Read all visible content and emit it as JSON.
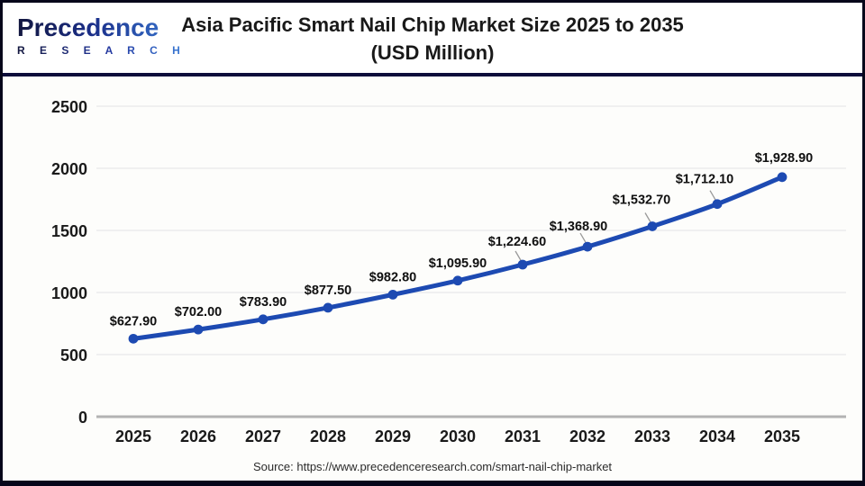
{
  "header": {
    "logo": {
      "name": "Precedence",
      "subtitle": "R E S E A R C H"
    },
    "title_line1": "Asia Pacific Smart Nail Chip Market Size 2025 to 2035",
    "title_line2": "(USD Million)"
  },
  "chart_data": {
    "type": "line",
    "title": "Asia Pacific Smart Nail Chip Market Size 2025 to 2035 (USD Million)",
    "xlabel": "",
    "ylabel": "",
    "categories": [
      "2025",
      "2026",
      "2027",
      "2028",
      "2029",
      "2030",
      "2031",
      "2032",
      "2033",
      "2034",
      "2035"
    ],
    "values": [
      627.9,
      702.0,
      783.9,
      877.5,
      982.8,
      1095.9,
      1224.6,
      1368.9,
      1532.7,
      1712.1,
      1928.9
    ],
    "point_labels": [
      "$627.90",
      "$702.00",
      "$783.90",
      "$877.50",
      "$982.80",
      "$1,095.90",
      "$1,224.60",
      "$1,368.90",
      "$1,532.70",
      "$1,712.10",
      "$1,928.90"
    ],
    "y_ticks": [
      0,
      500,
      1000,
      1500,
      2000,
      2500
    ],
    "ylim": [
      0,
      2500
    ],
    "grid": true,
    "legend_position": "none",
    "series_color": "#1d4ab2",
    "gridline_color": "#ececec",
    "axis_line_color": "#b3b3b3",
    "leader_line_color": "#9a9a9a"
  },
  "footer": {
    "source": "Source: https://www.precedenceresearch.com/smart-nail-chip-market"
  }
}
